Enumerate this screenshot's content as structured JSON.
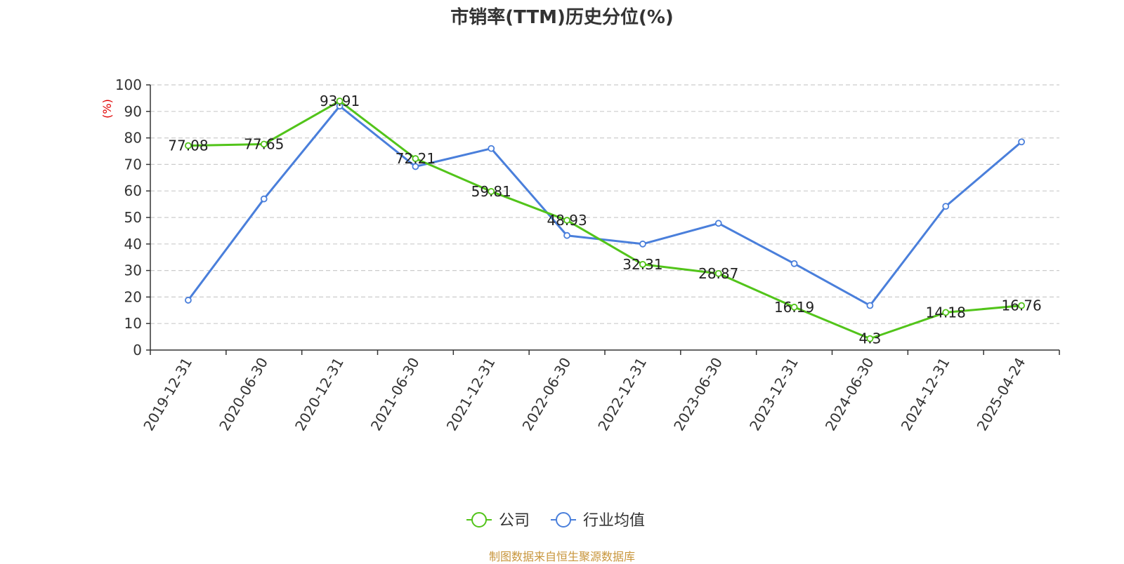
{
  "chart_data": {
    "type": "line",
    "title": "市销率(TTM)历史分位(%)",
    "ylabel": "(%)",
    "xlabel": "",
    "ylim": [
      0,
      100
    ],
    "yticks": [
      0,
      10,
      20,
      30,
      40,
      50,
      60,
      70,
      80,
      90,
      100
    ],
    "grid": true,
    "legend_position": "bottom-center",
    "x": [
      "2019-12-31",
      "2020-06-30",
      "2020-12-31",
      "2021-06-30",
      "2021-12-31",
      "2022-06-30",
      "2022-12-31",
      "2023-06-30",
      "2023-12-31",
      "2024-06-30",
      "2024-12-31",
      "2025-04-24"
    ],
    "series": [
      {
        "name": "公司",
        "color": "#52c41a",
        "values": [
          77.08,
          77.65,
          93.91,
          72.21,
          59.81,
          48.93,
          32.31,
          28.87,
          16.19,
          4.3,
          14.18,
          16.76
        ],
        "labels": [
          "77.08",
          "77.65",
          "93.91",
          "72.21",
          "59.81",
          "48.93",
          "32.31",
          "28.87",
          "16.19",
          "4.3",
          "14.18",
          "16.76"
        ]
      },
      {
        "name": "行业均值",
        "color": "#4a7fdb",
        "values": [
          18.8,
          57.0,
          92.0,
          69.2,
          76.0,
          43.2,
          40.0,
          47.8,
          32.6,
          16.8,
          54.2,
          78.5
        ]
      }
    ]
  },
  "source": "制图数据来自恒生聚源数据库"
}
